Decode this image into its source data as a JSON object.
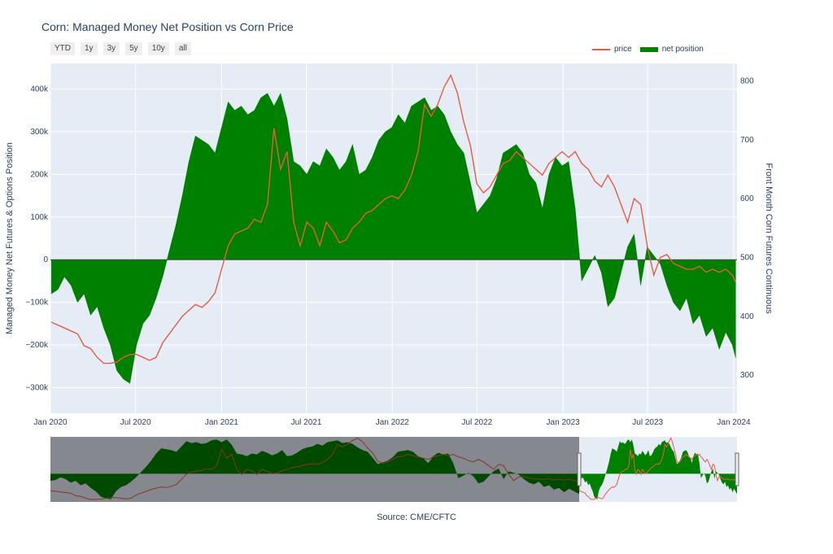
{
  "title": "Corn: Managed Money Net Position vs Corn Price",
  "source": "Source: CME/CFTC",
  "range_buttons": [
    "YTD",
    "1y",
    "3y",
    "5y",
    "10y",
    "all"
  ],
  "legend": [
    {
      "label": "price",
      "color": "#e45c44",
      "kind": "line"
    },
    {
      "label": "net position",
      "color": "#008000",
      "kind": "area"
    }
  ],
  "chart_data": {
    "type": "area",
    "title": "Corn: Managed Money Net Position vs Corn Price",
    "xlabel": "",
    "ylabel": "Managed Money Net Futures & Options Position",
    "y2label": "Front Month Corn Futures Continuous",
    "x_tick_labels": [
      "Jan 2020",
      "Jul 2020",
      "Jan 2021",
      "Jul 2021",
      "Jan 2022",
      "Jul 2022",
      "Jan 2023",
      "Jul 2023",
      "Jan 2024"
    ],
    "y_tick_labels": [
      "400k",
      "300k",
      "200k",
      "100k",
      "0",
      "−100k",
      "−200k",
      "−300k"
    ],
    "y2_tick_labels": [
      "800",
      "700",
      "600",
      "500",
      "400",
      "300"
    ],
    "ylim": [
      -360000,
      460000
    ],
    "y2lim": [
      235,
      830
    ],
    "grid": true,
    "legend_position": "top-right",
    "series": [
      {
        "name": "net position",
        "axis": "y",
        "color": "#008000",
        "x": [
          "2020-01-03",
          "2020-01-17",
          "2020-01-31",
          "2020-02-14",
          "2020-02-28",
          "2020-03-13",
          "2020-03-27",
          "2020-04-10",
          "2020-04-24",
          "2020-05-08",
          "2020-05-22",
          "2020-06-05",
          "2020-06-19",
          "2020-07-03",
          "2020-07-17",
          "2020-07-31",
          "2020-08-14",
          "2020-08-28",
          "2020-09-11",
          "2020-09-25",
          "2020-10-09",
          "2020-10-23",
          "2020-11-06",
          "2020-11-20",
          "2020-12-04",
          "2020-12-18",
          "2021-01-01",
          "2021-01-15",
          "2021-01-29",
          "2021-02-12",
          "2021-02-26",
          "2021-03-12",
          "2021-03-26",
          "2021-04-09",
          "2021-04-23",
          "2021-05-07",
          "2021-05-21",
          "2021-06-04",
          "2021-06-18",
          "2021-07-02",
          "2021-07-16",
          "2021-07-30",
          "2021-08-13",
          "2021-08-27",
          "2021-09-10",
          "2021-09-24",
          "2021-10-08",
          "2021-10-22",
          "2021-11-05",
          "2021-11-19",
          "2021-12-03",
          "2021-12-17",
          "2021-12-31",
          "2022-01-14",
          "2022-01-28",
          "2022-02-11",
          "2022-02-25",
          "2022-03-11",
          "2022-03-25",
          "2022-04-08",
          "2022-04-22",
          "2022-05-06",
          "2022-05-20",
          "2022-06-03",
          "2022-06-17",
          "2022-07-01",
          "2022-07-15",
          "2022-07-29",
          "2022-08-12",
          "2022-08-26",
          "2022-09-09",
          "2022-09-23",
          "2022-10-07",
          "2022-10-21",
          "2022-11-04",
          "2022-11-18",
          "2022-12-02",
          "2022-12-16",
          "2022-12-30",
          "2023-01-13",
          "2023-01-27",
          "2023-02-10",
          "2023-02-24",
          "2023-03-10",
          "2023-03-24",
          "2023-04-07",
          "2023-04-21",
          "2023-05-05",
          "2023-05-19",
          "2023-06-02",
          "2023-06-16",
          "2023-06-30",
          "2023-07-14",
          "2023-07-28",
          "2023-08-11",
          "2023-08-25",
          "2023-09-08",
          "2023-09-22",
          "2023-10-06",
          "2023-10-20",
          "2023-11-03",
          "2023-11-17",
          "2023-12-01",
          "2023-12-15",
          "2023-12-29",
          "2024-01-05"
        ],
        "values": [
          -80000,
          -70000,
          -40000,
          -60000,
          -100000,
          -80000,
          -130000,
          -110000,
          -160000,
          -200000,
          -260000,
          -280000,
          -290000,
          -200000,
          -150000,
          -130000,
          -90000,
          -40000,
          20000,
          80000,
          150000,
          230000,
          290000,
          280000,
          270000,
          250000,
          310000,
          370000,
          350000,
          360000,
          340000,
          350000,
          380000,
          390000,
          360000,
          390000,
          330000,
          230000,
          220000,
          200000,
          230000,
          220000,
          260000,
          240000,
          210000,
          230000,
          270000,
          200000,
          210000,
          240000,
          280000,
          300000,
          310000,
          340000,
          320000,
          360000,
          370000,
          380000,
          350000,
          360000,
          340000,
          300000,
          270000,
          250000,
          180000,
          110000,
          130000,
          150000,
          190000,
          250000,
          260000,
          270000,
          250000,
          200000,
          180000,
          120000,
          200000,
          240000,
          220000,
          230000,
          120000,
          -50000,
          -20000,
          10000,
          -30000,
          -110000,
          -90000,
          -30000,
          30000,
          60000,
          -60000,
          30000,
          10000,
          -10000,
          -60000,
          -100000,
          -120000,
          -90000,
          -150000,
          -130000,
          -180000,
          -160000,
          -210000,
          -170000,
          -200000,
          -230000
        ]
      },
      {
        "name": "price",
        "axis": "y2",
        "color": "#e45c44",
        "x": [
          "2020-01-03",
          "2020-01-17",
          "2020-01-31",
          "2020-02-14",
          "2020-02-28",
          "2020-03-13",
          "2020-03-27",
          "2020-04-10",
          "2020-04-24",
          "2020-05-08",
          "2020-05-22",
          "2020-06-05",
          "2020-06-19",
          "2020-07-03",
          "2020-07-17",
          "2020-07-31",
          "2020-08-14",
          "2020-08-28",
          "2020-09-11",
          "2020-09-25",
          "2020-10-09",
          "2020-10-23",
          "2020-11-06",
          "2020-11-20",
          "2020-12-04",
          "2020-12-18",
          "2021-01-01",
          "2021-01-15",
          "2021-01-29",
          "2021-02-12",
          "2021-02-26",
          "2021-03-12",
          "2021-03-26",
          "2021-04-09",
          "2021-04-23",
          "2021-05-07",
          "2021-05-21",
          "2021-06-04",
          "2021-06-18",
          "2021-07-02",
          "2021-07-16",
          "2021-07-30",
          "2021-08-13",
          "2021-08-27",
          "2021-09-10",
          "2021-09-24",
          "2021-10-08",
          "2021-10-22",
          "2021-11-05",
          "2021-11-19",
          "2021-12-03",
          "2021-12-17",
          "2021-12-31",
          "2022-01-14",
          "2022-01-28",
          "2022-02-11",
          "2022-02-25",
          "2022-03-11",
          "2022-03-25",
          "2022-04-08",
          "2022-04-22",
          "2022-05-06",
          "2022-05-20",
          "2022-06-03",
          "2022-06-17",
          "2022-07-01",
          "2022-07-15",
          "2022-07-29",
          "2022-08-12",
          "2022-08-26",
          "2022-09-09",
          "2022-09-23",
          "2022-10-07",
          "2022-10-21",
          "2022-11-04",
          "2022-11-18",
          "2022-12-02",
          "2022-12-16",
          "2022-12-30",
          "2023-01-13",
          "2023-01-27",
          "2023-02-10",
          "2023-02-24",
          "2023-03-10",
          "2023-03-24",
          "2023-04-07",
          "2023-04-21",
          "2023-05-05",
          "2023-05-19",
          "2023-06-02",
          "2023-06-16",
          "2023-06-30",
          "2023-07-14",
          "2023-07-28",
          "2023-08-11",
          "2023-08-25",
          "2023-09-08",
          "2023-09-22",
          "2023-10-06",
          "2023-10-20",
          "2023-11-03",
          "2023-11-17",
          "2023-12-01",
          "2023-12-15",
          "2023-12-29",
          "2024-01-05"
        ],
        "values": [
          390,
          385,
          380,
          375,
          370,
          350,
          345,
          330,
          320,
          320,
          322,
          330,
          335,
          335,
          330,
          325,
          330,
          355,
          370,
          385,
          400,
          410,
          420,
          415,
          425,
          440,
          480,
          520,
          540,
          545,
          550,
          565,
          560,
          590,
          720,
          650,
          680,
          560,
          520,
          560,
          550,
          520,
          560,
          545,
          525,
          530,
          550,
          560,
          575,
          580,
          590,
          600,
          605,
          600,
          615,
          640,
          680,
          760,
          740,
          760,
          790,
          810,
          780,
          730,
          690,
          625,
          610,
          620,
          640,
          660,
          665,
          680,
          670,
          660,
          650,
          640,
          660,
          670,
          680,
          670,
          680,
          660,
          650,
          630,
          620,
          640,
          620,
          590,
          560,
          600,
          590,
          520,
          470,
          500,
          505,
          490,
          485,
          480,
          480,
          485,
          475,
          480,
          475,
          480,
          470,
          458
        ]
      }
    ]
  },
  "navigator": {
    "has_range_selector_preview": true
  }
}
